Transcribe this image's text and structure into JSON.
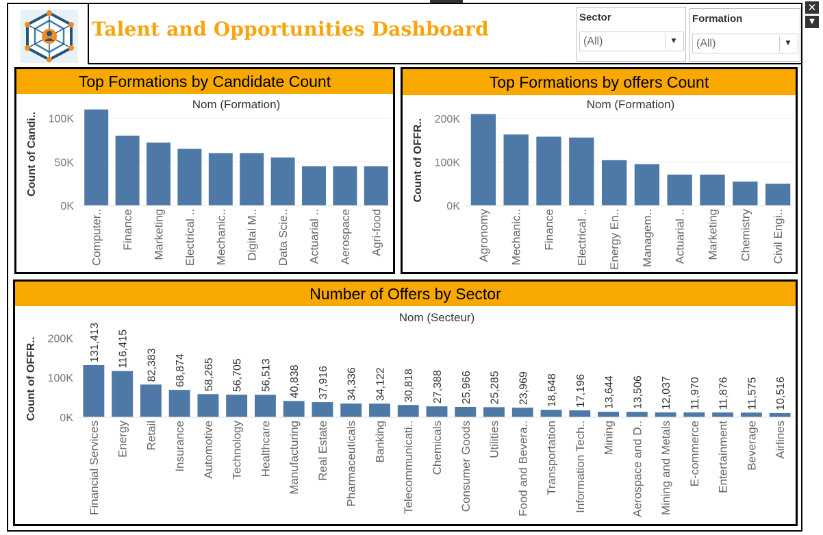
{
  "header": {
    "title": "Talent and Opportunities Dashboard",
    "logo_icon": "network-hexagon-icon"
  },
  "filters": {
    "sector": {
      "label": "Sector",
      "value": "(All)"
    },
    "formation": {
      "label": "Formation",
      "value": "(All)"
    }
  },
  "window": {
    "close_glyph": "✕",
    "menu_glyph": "▼"
  },
  "colors": {
    "bar": "#4e79a7",
    "header": "#f9a800",
    "title": "#f6a50f"
  },
  "chart_data": [
    {
      "type": "bar",
      "title": "Top Formations by Candidate Count",
      "xlabel": "Nom (Formation)",
      "ylabel": "Count of Candi..",
      "ylim": [
        0,
        120000
      ],
      "yticks": [
        0,
        50000,
        100000
      ],
      "ytick_labels": [
        "0K",
        "50K",
        "100K"
      ],
      "categories": [
        "Computer..",
        "Finance",
        "Marketing",
        "Electrical ..",
        "Mechanic..",
        "Digital M..",
        "Data Scie..",
        "Actuarial ..",
        "Aerospace",
        "Agri-food"
      ],
      "values": [
        110000,
        80000,
        72000,
        65000,
        60000,
        60000,
        55000,
        45000,
        45000,
        45000
      ],
      "grid": true
    },
    {
      "type": "bar",
      "title": "Top Formations by offers Count",
      "xlabel": "Nom (Formation)",
      "ylabel": "Count of OFFR..",
      "ylim": [
        0,
        250000
      ],
      "yticks": [
        0,
        100000,
        200000
      ],
      "ytick_labels": [
        "0K",
        "100K",
        "200K"
      ],
      "categories": [
        "Agronomy",
        "Mechanic..",
        "Finance",
        "Electrical ..",
        "Energy En..",
        "Managem..",
        "Actuarial ..",
        "Marketing",
        "Chemistry",
        "Civil Engi.."
      ],
      "values": [
        210000,
        163000,
        158000,
        156000,
        104000,
        95000,
        71000,
        71000,
        55000,
        50000
      ],
      "grid": true
    },
    {
      "type": "bar",
      "title": "Number of Offers by Sector",
      "xlabel": "Nom (Secteur)",
      "ylabel": "Count of OFFR..",
      "ylim": [
        0,
        280000
      ],
      "yticks": [
        0,
        100000,
        200000
      ],
      "ytick_labels": [
        "0K",
        "100K",
        "200K"
      ],
      "categories": [
        "Financial Services",
        "Energy",
        "Retail",
        "Insurance",
        "Automotive",
        "Technology",
        "Healthcare",
        "Manufacturing",
        "Real Estate",
        "Pharmaceuticals",
        "Banking",
        "Telecommunicati..",
        "Chemicals",
        "Consumer Goods",
        "Utilities",
        "Food and Bevera..",
        "Transportation",
        "Information Tech..",
        "Mining",
        "Aerospace and D..",
        "Mining and Metals",
        "E-commerce",
        "Entertainment",
        "Beverage",
        "Airlines"
      ],
      "values": [
        131413,
        116415,
        82383,
        68874,
        58265,
        56705,
        56513,
        40838,
        37916,
        34336,
        34122,
        30818,
        27388,
        25966,
        25285,
        23969,
        18648,
        17196,
        13644,
        13506,
        12037,
        11970,
        11876,
        11575,
        10516
      ],
      "data_labels": [
        "131,413",
        "116,415",
        "82,383",
        "68,874",
        "58,265",
        "56,705",
        "56,513",
        "40,838",
        "37,916",
        "34,336",
        "34,122",
        "30,818",
        "27,388",
        "25,966",
        "25,285",
        "23,969",
        "18,648",
        "17,196",
        "13,644",
        "13,506",
        "12,037",
        "11,970",
        "11,876",
        "11,575",
        "10,516"
      ],
      "grid": false
    }
  ]
}
